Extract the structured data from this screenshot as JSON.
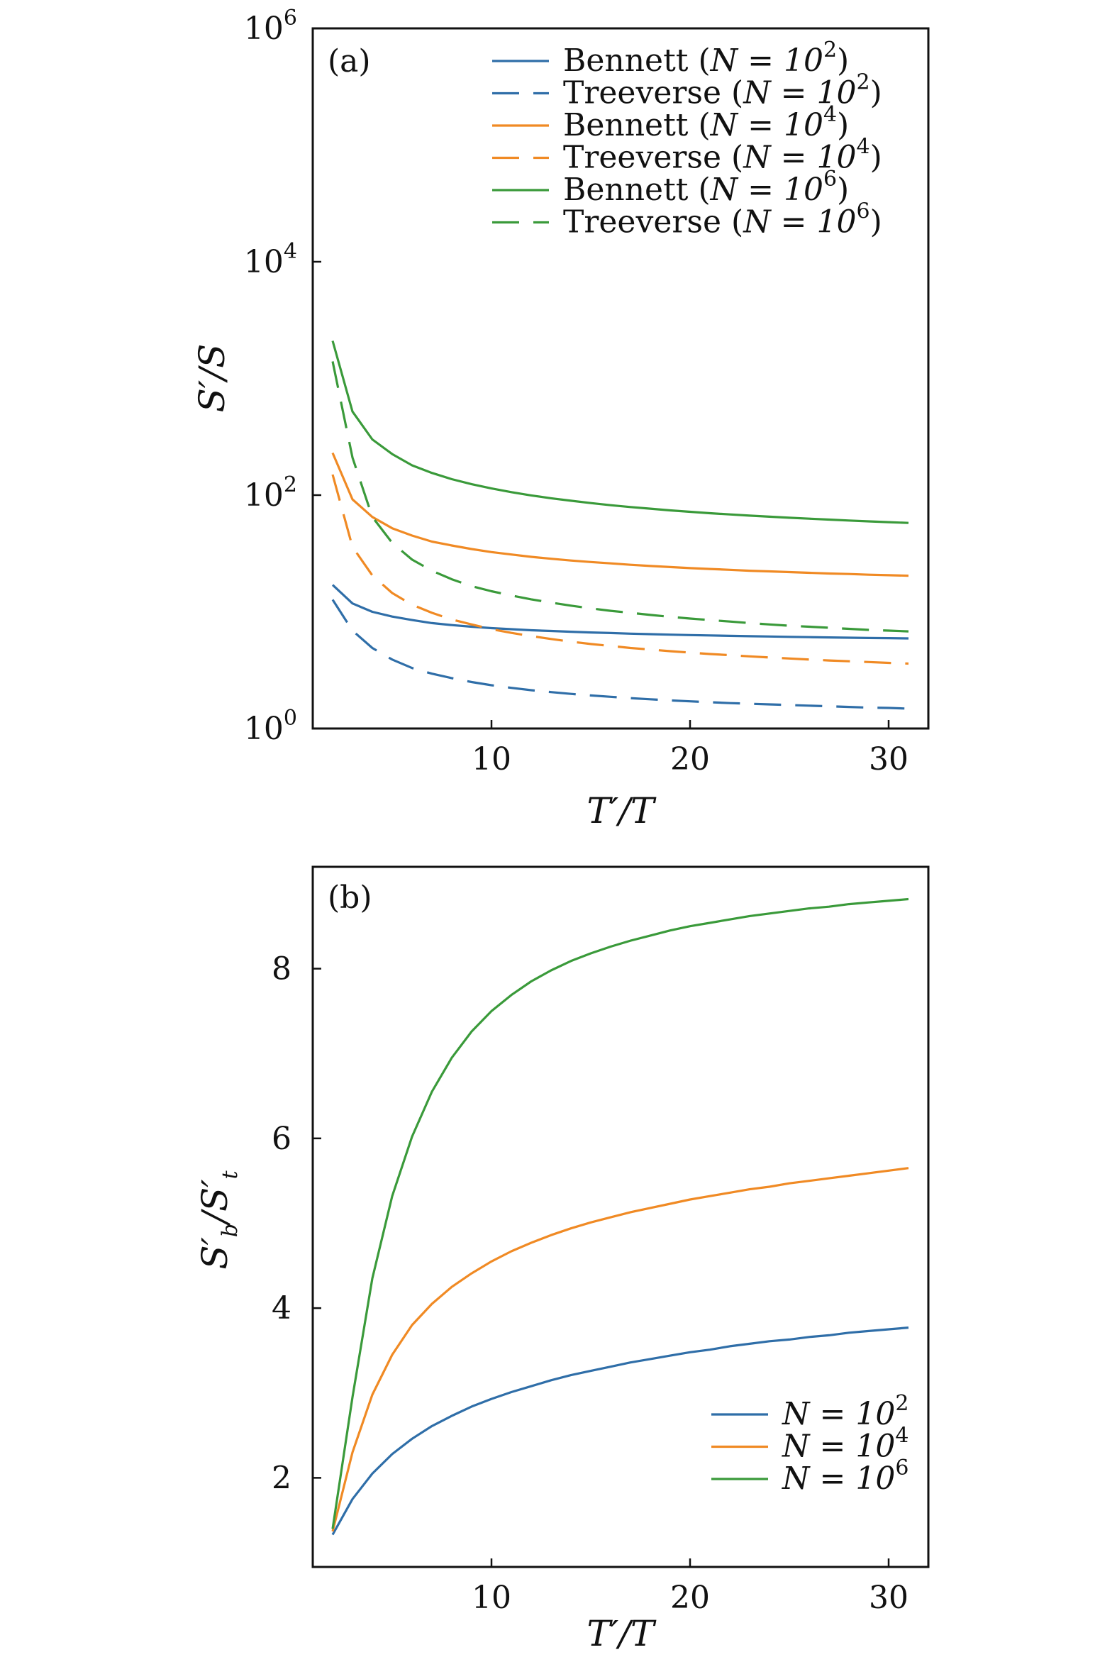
{
  "colors": {
    "blue": "#2f6ea8",
    "orange": "#f08a24",
    "green": "#3a9a3a"
  },
  "chart_data": [
    {
      "panel_label": "(a)",
      "type": "line",
      "xlabel": "T′/T",
      "ylabel": "S′/S",
      "y_scale": "log",
      "xlim": [
        1,
        32
      ],
      "ylim": [
        1,
        1000000
      ],
      "x_ticks": [
        10,
        20,
        30
      ],
      "x_tick_labels": [
        "10",
        "20",
        "30"
      ],
      "y_ticks": [
        1,
        100,
        10000,
        1000000
      ],
      "y_tick_base": [
        "10",
        "10",
        "10",
        "10"
      ],
      "y_tick_exp": [
        "0",
        "2",
        "4",
        "6"
      ],
      "grid": false,
      "legend_position": "top-right",
      "x": [
        2,
        3,
        4,
        5,
        6,
        7,
        8,
        9,
        10,
        11,
        12,
        13,
        14,
        15,
        16,
        17,
        18,
        19,
        20,
        21,
        22,
        23,
        24,
        25,
        26,
        27,
        28,
        29,
        30,
        31
      ],
      "series": [
        {
          "name_text": "Bennett",
          "name_n": "N = 10",
          "name_exp": "2",
          "color": "blue",
          "dash": "solid",
          "values": [
            17,
            11.8,
            10,
            9.1,
            8.5,
            8.0,
            7.7,
            7.45,
            7.25,
            7.1,
            6.95,
            6.85,
            6.75,
            6.65,
            6.58,
            6.5,
            6.43,
            6.37,
            6.32,
            6.27,
            6.22,
            6.18,
            6.14,
            6.1,
            6.07,
            6.03,
            6.0,
            5.97,
            5.95,
            5.92
          ]
        },
        {
          "name_text": "Treeverse",
          "name_n": "N = 10",
          "name_exp": "2",
          "color": "blue",
          "dash": "dashed",
          "values": [
            12.7,
            6.9,
            4.9,
            3.9,
            3.3,
            2.95,
            2.7,
            2.5,
            2.35,
            2.23,
            2.13,
            2.05,
            1.98,
            1.92,
            1.87,
            1.82,
            1.78,
            1.74,
            1.71,
            1.68,
            1.65,
            1.63,
            1.61,
            1.59,
            1.57,
            1.55,
            1.53,
            1.51,
            1.5,
            1.48
          ]
        },
        {
          "name_text": "Bennett",
          "name_n": "N = 10",
          "name_exp": "4",
          "color": "orange",
          "dash": "solid",
          "values": [
            230,
            92,
            65,
            52,
            45,
            40,
            37,
            34.5,
            32.5,
            31,
            29.6,
            28.5,
            27.5,
            26.7,
            26,
            25.3,
            24.7,
            24.2,
            23.7,
            23.3,
            22.9,
            22.5,
            22.2,
            21.9,
            21.6,
            21.3,
            21.1,
            20.8,
            20.6,
            20.4
          ]
        },
        {
          "name_text": "Treeverse",
          "name_n": "N = 10",
          "name_exp": "4",
          "color": "orange",
          "dash": "dashed",
          "values": [
            150,
            36,
            20.5,
            14.5,
            11.5,
            9.8,
            8.6,
            7.8,
            7.1,
            6.6,
            6.2,
            5.85,
            5.55,
            5.3,
            5.1,
            4.9,
            4.75,
            4.6,
            4.47,
            4.35,
            4.25,
            4.15,
            4.06,
            3.98,
            3.9,
            3.83,
            3.77,
            3.71,
            3.65,
            3.6
          ]
        },
        {
          "name_text": "Bennett",
          "name_n": "N = 10",
          "name_exp": "6",
          "color": "green",
          "dash": "solid",
          "values": [
            2100,
            520,
            300,
            225,
            180,
            155,
            137,
            124,
            114,
            106,
            99.5,
            94,
            89.5,
            85.5,
            82,
            79,
            76.5,
            74,
            72,
            70,
            68.3,
            66.7,
            65.3,
            64,
            62.8,
            61.7,
            60.6,
            59.6,
            58.7,
            57.8
          ]
        },
        {
          "name_text": "Treeverse",
          "name_n": "N = 10",
          "name_exp": "6",
          "color": "green",
          "dash": "dashed",
          "values": [
            1400,
            210,
            65,
            39,
            28,
            22.5,
            19,
            16.6,
            15,
            13.8,
            12.8,
            12,
            11.3,
            10.7,
            10.2,
            9.8,
            9.4,
            9.05,
            8.75,
            8.5,
            8.25,
            8.0,
            7.8,
            7.6,
            7.45,
            7.3,
            7.15,
            7.0,
            6.9,
            6.8
          ]
        }
      ]
    },
    {
      "panel_label": "(b)",
      "type": "line",
      "xlabel": "T′/T",
      "ylabel_main": "S′",
      "ylabel_sub1": "b",
      "ylabel_mid": "/S′",
      "ylabel_sub2": "t",
      "y_scale": "linear",
      "xlim": [
        1,
        32
      ],
      "ylim": [
        0.95,
        9.2
      ],
      "x_ticks": [
        10,
        20,
        30
      ],
      "x_tick_labels": [
        "10",
        "20",
        "30"
      ],
      "y_ticks": [
        2,
        4,
        6,
        8
      ],
      "y_tick_labels": [
        "2",
        "4",
        "6",
        "8"
      ],
      "grid": false,
      "legend_position": "bottom-right",
      "x": [
        2,
        3,
        4,
        5,
        6,
        7,
        8,
        9,
        10,
        11,
        12,
        13,
        14,
        15,
        16,
        17,
        18,
        19,
        20,
        21,
        22,
        23,
        24,
        25,
        26,
        27,
        28,
        29,
        30,
        31
      ],
      "series": [
        {
          "name_n": "N = 10",
          "name_exp": "2",
          "color": "blue",
          "values": [
            1.33,
            1.75,
            2.05,
            2.28,
            2.46,
            2.61,
            2.73,
            2.84,
            2.93,
            3.01,
            3.08,
            3.15,
            3.21,
            3.26,
            3.31,
            3.36,
            3.4,
            3.44,
            3.48,
            3.51,
            3.55,
            3.58,
            3.61,
            3.63,
            3.66,
            3.68,
            3.71,
            3.73,
            3.75,
            3.77
          ]
        },
        {
          "name_n": "N = 10",
          "name_exp": "4",
          "color": "orange",
          "values": [
            1.37,
            2.3,
            2.98,
            3.45,
            3.8,
            4.05,
            4.25,
            4.41,
            4.55,
            4.67,
            4.77,
            4.86,
            4.94,
            5.01,
            5.07,
            5.13,
            5.18,
            5.23,
            5.28,
            5.32,
            5.36,
            5.4,
            5.43,
            5.47,
            5.5,
            5.53,
            5.56,
            5.59,
            5.62,
            5.65
          ]
        },
        {
          "name_n": "N = 10",
          "name_exp": "6",
          "color": "green",
          "values": [
            1.4,
            2.95,
            4.35,
            5.32,
            6.02,
            6.55,
            6.95,
            7.26,
            7.5,
            7.69,
            7.85,
            7.98,
            8.09,
            8.18,
            8.26,
            8.33,
            8.39,
            8.45,
            8.5,
            8.54,
            8.58,
            8.62,
            8.65,
            8.68,
            8.71,
            8.73,
            8.76,
            8.78,
            8.8,
            8.82
          ]
        }
      ]
    }
  ]
}
